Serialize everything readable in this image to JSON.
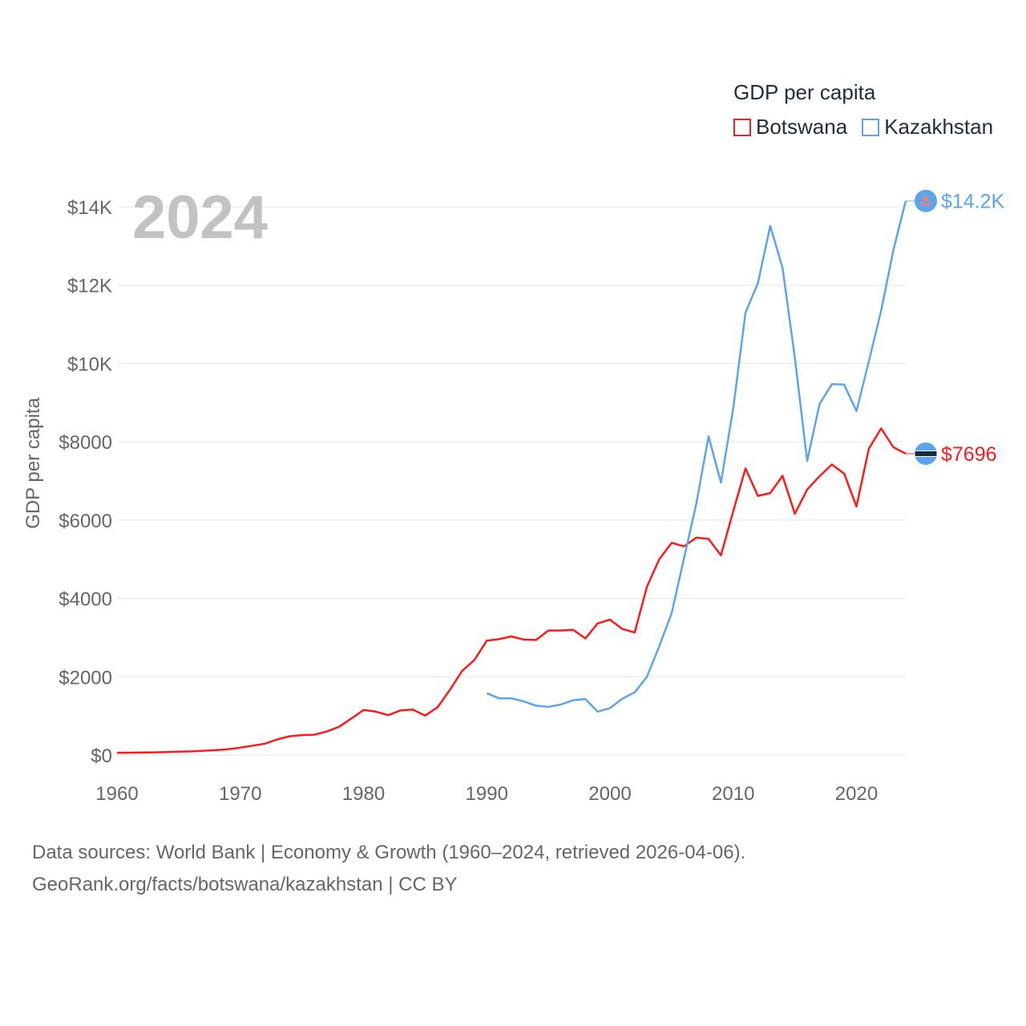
{
  "legend": {
    "title": "GDP per capita",
    "items": [
      "Botswana",
      "Kazakhstan"
    ]
  },
  "footer": {
    "line1": "Data sources: World Bank | Economy & Growth (1960–2024, retrieved 2026-04-06).",
    "line2": "GeoRank.org/facts/botswana/kazakhstan | CC BY"
  },
  "year_label": "2024",
  "colors": {
    "Botswana": "#ff1a1a",
    "Kazakhstan": "#5ba4ee",
    "grid": "#e6e6e6",
    "text": "#666666"
  },
  "chart_data": {
    "type": "line",
    "title": "GDP per capita",
    "xlabel": "",
    "ylabel": "GDP per capita",
    "xlim": [
      1960,
      2024
    ],
    "ylim": [
      0,
      14000
    ],
    "grid": true,
    "legend_position": "top-right",
    "x_ticks": [
      1960,
      1970,
      1980,
      1990,
      2000,
      2010,
      2020
    ],
    "x_tick_labels": [
      "1960",
      "1970",
      "1980",
      "1990",
      "2000",
      "2010",
      "2020"
    ],
    "y_ticks": [
      0,
      2000,
      4000,
      6000,
      8000,
      10000,
      12000,
      14000
    ],
    "y_tick_labels": [
      "$0",
      "$2000",
      "$4000",
      "$6000",
      "$8000",
      "$10K",
      "$12K",
      "$14K"
    ],
    "series": [
      {
        "name": "Botswana",
        "start_year": 1960,
        "end_label": "$7696",
        "values": [
          60,
          62,
          65,
          70,
          75,
          85,
          95,
          110,
          125,
          150,
          190,
          240,
          290,
          400,
          480,
          510,
          520,
          600,
          720,
          930,
          1150,
          1110,
          1020,
          1140,
          1160,
          1010,
          1220,
          1660,
          2150,
          2430,
          2920,
          2960,
          3030,
          2950,
          2940,
          3180,
          3180,
          3200,
          2980,
          3360,
          3460,
          3220,
          3130,
          4300,
          5000,
          5420,
          5330,
          5550,
          5520,
          5100,
          6230,
          7320,
          6620,
          6690,
          7130,
          6160,
          6780,
          7120,
          7420,
          7190,
          6350,
          7820,
          8340,
          7860,
          7696
        ]
      },
      {
        "name": "Kazakhstan",
        "start_year": 1990,
        "end_label": "$14.2K",
        "values": [
          1580,
          1450,
          1450,
          1370,
          1260,
          1230,
          1290,
          1400,
          1430,
          1110,
          1200,
          1440,
          1600,
          2000,
          2780,
          3620,
          5020,
          6410,
          8140,
          6960,
          8860,
          11300,
          12050,
          13510,
          12440,
          10150,
          7510,
          8960,
          9470,
          9460,
          8780,
          10050,
          11350,
          12900,
          14150
        ]
      }
    ]
  }
}
